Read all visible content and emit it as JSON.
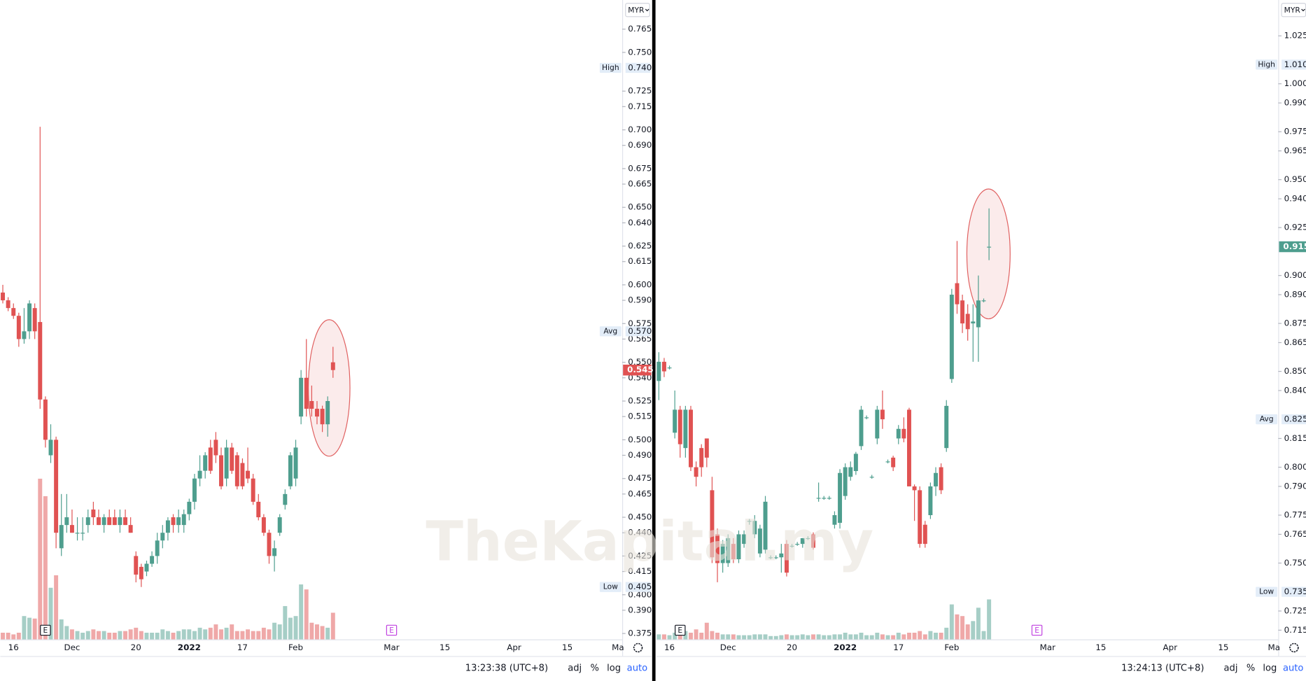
{
  "watermark": "TheKapital.my",
  "chart_data": [
    {
      "type": "candlestick",
      "currency": "MYR",
      "xlim": [
        -0.47,
        116.3
      ],
      "xticks": [
        {
          "value": 2,
          "label": "16"
        },
        {
          "value": 13,
          "label": "Dec"
        },
        {
          "value": 25,
          "label": "20"
        },
        {
          "value": 35,
          "label": "2022",
          "bold": true
        },
        {
          "value": 45,
          "label": "17"
        },
        {
          "value": 55,
          "label": "Feb"
        },
        {
          "value": 73,
          "label": "Mar"
        },
        {
          "value": 83,
          "label": "15"
        },
        {
          "value": 96,
          "label": "Apr"
        },
        {
          "value": 106,
          "label": "15"
        },
        {
          "value": 115.5,
          "label": "Ma"
        }
      ],
      "ylim": [
        0.3712,
        0.7838
      ],
      "yticks": [
        {
          "value": 0.765,
          "label": "0.765"
        },
        {
          "value": 0.75,
          "label": "0.750"
        },
        {
          "value": 0.725,
          "label": "0.725"
        },
        {
          "value": 0.715,
          "label": "0.715"
        },
        {
          "value": 0.7,
          "label": "0.700"
        },
        {
          "value": 0.69,
          "label": "0.690"
        },
        {
          "value": 0.675,
          "label": "0.675"
        },
        {
          "value": 0.665,
          "label": "0.665"
        },
        {
          "value": 0.65,
          "label": "0.650"
        },
        {
          "value": 0.64,
          "label": "0.640"
        },
        {
          "value": 0.625,
          "label": "0.625"
        },
        {
          "value": 0.615,
          "label": "0.615"
        },
        {
          "value": 0.6,
          "label": "0.600"
        },
        {
          "value": 0.59,
          "label": "0.590"
        },
        {
          "value": 0.575,
          "label": "0.575"
        },
        {
          "value": 0.565,
          "label": "0.565"
        },
        {
          "value": 0.55,
          "label": "0.550"
        },
        {
          "value": 0.54,
          "label": "0.540"
        },
        {
          "value": 0.525,
          "label": "0.525"
        },
        {
          "value": 0.515,
          "label": "0.515"
        },
        {
          "value": 0.5,
          "label": "0.500"
        },
        {
          "value": 0.49,
          "label": "0.490"
        },
        {
          "value": 0.475,
          "label": "0.475"
        },
        {
          "value": 0.465,
          "label": "0.465"
        },
        {
          "value": 0.45,
          "label": "0.450"
        },
        {
          "value": 0.44,
          "label": "0.440"
        },
        {
          "value": 0.425,
          "label": "0.425"
        },
        {
          "value": 0.415,
          "label": "0.415"
        },
        {
          "value": 0.4,
          "label": "0.400"
        },
        {
          "value": 0.39,
          "label": "0.390"
        },
        {
          "value": 0.375,
          "label": "0.375"
        }
      ],
      "up_color": "#4e9e8e",
      "down_color": "#e05252",
      "open": [
        0.595,
        0.59,
        0.585,
        0.58,
        0.565,
        0.57,
        0.585,
        0.576,
        0.526,
        0.49,
        0.5,
        0.43,
        0.445,
        0.445,
        0.44,
        0.44,
        0.445,
        0.455,
        0.45,
        0.445,
        0.45,
        0.45,
        0.445,
        0.45,
        0.445,
        0.425,
        0.418,
        0.415,
        0.42,
        0.425,
        0.435,
        0.44,
        0.45,
        0.445,
        0.445,
        0.452,
        0.46,
        0.475,
        0.48,
        0.495,
        0.5,
        0.49,
        0.475,
        0.495,
        0.49,
        0.485,
        0.48,
        0.475,
        0.46,
        0.45,
        0.44,
        0.425,
        0.44,
        0.458,
        0.47,
        0.475,
        0.515,
        0.54,
        0.525,
        0.52,
        0.52,
        0.51,
        0.55
      ],
      "high": [
        0.6,
        0.592,
        0.588,
        0.582,
        0.585,
        0.59,
        0.588,
        0.702,
        0.528,
        0.51,
        0.502,
        0.465,
        0.465,
        0.455,
        0.45,
        0.45,
        0.455,
        0.46,
        0.455,
        0.452,
        0.455,
        0.455,
        0.455,
        0.455,
        0.45,
        0.428,
        0.42,
        0.422,
        0.428,
        0.44,
        0.445,
        0.45,
        0.452,
        0.455,
        0.455,
        0.462,
        0.478,
        0.49,
        0.492,
        0.5,
        0.505,
        0.495,
        0.5,
        0.498,
        0.492,
        0.488,
        0.495,
        0.478,
        0.465,
        0.452,
        0.442,
        0.435,
        0.452,
        0.468,
        0.492,
        0.5,
        0.545,
        0.565,
        0.535,
        0.525,
        0.522,
        0.528,
        0.56
      ],
      "low": [
        0.588,
        0.583,
        0.578,
        0.56,
        0.562,
        0.565,
        0.565,
        0.52,
        0.495,
        0.485,
        0.43,
        0.425,
        0.44,
        0.44,
        0.435,
        0.435,
        0.44,
        0.445,
        0.445,
        0.44,
        0.445,
        0.445,
        0.44,
        0.445,
        0.44,
        0.408,
        0.405,
        0.412,
        0.418,
        0.42,
        0.43,
        0.435,
        0.44,
        0.44,
        0.44,
        0.448,
        0.455,
        0.47,
        0.475,
        0.478,
        0.485,
        0.468,
        0.47,
        0.478,
        0.468,
        0.468,
        0.472,
        0.458,
        0.448,
        0.438,
        0.42,
        0.415,
        0.438,
        0.455,
        0.468,
        0.47,
        0.51,
        0.515,
        0.515,
        0.51,
        0.505,
        0.502,
        0.54
      ],
      "close": [
        0.59,
        0.585,
        0.58,
        0.565,
        0.57,
        0.588,
        0.57,
        0.526,
        0.5,
        0.5,
        0.44,
        0.445,
        0.45,
        0.44,
        0.44,
        0.44,
        0.45,
        0.45,
        0.445,
        0.45,
        0.445,
        0.445,
        0.45,
        0.445,
        0.44,
        0.413,
        0.41,
        0.42,
        0.425,
        0.435,
        0.44,
        0.448,
        0.445,
        0.45,
        0.452,
        0.46,
        0.475,
        0.48,
        0.49,
        0.48,
        0.49,
        0.47,
        0.495,
        0.48,
        0.47,
        0.47,
        0.475,
        0.46,
        0.45,
        0.44,
        0.425,
        0.43,
        0.45,
        0.465,
        0.49,
        0.495,
        0.54,
        0.52,
        0.52,
        0.515,
        0.51,
        0.525,
        0.545
      ],
      "volume": [
        8,
        8,
        6,
        8,
        28,
        26,
        25,
        193,
        172,
        62,
        77,
        24,
        16,
        12,
        10,
        8,
        10,
        12,
        10,
        10,
        8,
        8,
        10,
        10,
        12,
        14,
        10,
        8,
        8,
        8,
        12,
        10,
        8,
        10,
        12,
        12,
        10,
        14,
        12,
        14,
        18,
        12,
        14,
        18,
        10,
        10,
        12,
        10,
        10,
        14,
        12,
        20,
        18,
        40,
        26,
        28,
        66,
        60,
        20,
        18,
        16,
        14,
        32
      ],
      "markers": [
        {
          "name": "High",
          "value": 0.74,
          "label": "0.740"
        },
        {
          "name": "Avg",
          "value": 0.57,
          "label": "0.570"
        },
        {
          "name": "Low",
          "value": 0.405,
          "label": "0.405"
        }
      ],
      "last": {
        "value": 0.545,
        "label": "0.545",
        "color": "#e05252"
      },
      "events": [
        {
          "label": "E",
          "x": 8,
          "color": "#131722"
        },
        {
          "label": "E",
          "x": 73,
          "color": "#c040e0"
        }
      ],
      "footer": {
        "time": "13:23:38 (UTC+8)",
        "buttons": [
          "adj",
          "%",
          "log",
          "auto"
        ]
      }
    },
    {
      "type": "candlestick",
      "currency": "MYR",
      "xlim": [
        -0.47,
        116.3
      ],
      "xticks": [
        {
          "value": 2,
          "label": "16"
        },
        {
          "value": 13,
          "label": "Dec"
        },
        {
          "value": 25,
          "label": "20"
        },
        {
          "value": 35,
          "label": "2022",
          "bold": true
        },
        {
          "value": 45,
          "label": "17"
        },
        {
          "value": 55,
          "label": "Feb"
        },
        {
          "value": 73,
          "label": "Mar"
        },
        {
          "value": 83,
          "label": "15"
        },
        {
          "value": 96,
          "label": "Apr"
        },
        {
          "value": 106,
          "label": "15"
        },
        {
          "value": 115.5,
          "label": "Ma"
        }
      ],
      "ylim": [
        0.7102,
        1.0437
      ],
      "yticks": [
        {
          "value": 1.025,
          "label": "1.025"
        },
        {
          "value": 1,
          "label": "1.000"
        },
        {
          "value": 0.99,
          "label": "0.990"
        },
        {
          "value": 0.975,
          "label": "0.975"
        },
        {
          "value": 0.965,
          "label": "0.965"
        },
        {
          "value": 0.95,
          "label": "0.950"
        },
        {
          "value": 0.94,
          "label": "0.940"
        },
        {
          "value": 0.925,
          "label": "0.925"
        },
        {
          "value": 0.9,
          "label": "0.900"
        },
        {
          "value": 0.89,
          "label": "0.890"
        },
        {
          "value": 0.875,
          "label": "0.875"
        },
        {
          "value": 0.865,
          "label": "0.865"
        },
        {
          "value": 0.85,
          "label": "0.850"
        },
        {
          "value": 0.84,
          "label": "0.840"
        },
        {
          "value": 0.815,
          "label": "0.815"
        },
        {
          "value": 0.8,
          "label": "0.800"
        },
        {
          "value": 0.79,
          "label": "0.790"
        },
        {
          "value": 0.775,
          "label": "0.775"
        },
        {
          "value": 0.765,
          "label": "0.765"
        },
        {
          "value": 0.75,
          "label": "0.750"
        },
        {
          "value": 0.725,
          "label": "0.725"
        },
        {
          "value": 0.715,
          "label": "0.715"
        }
      ],
      "up_color": "#4e9e8e",
      "down_color": "#e05252",
      "open": [
        0.845,
        0.855,
        0.852,
        0.818,
        0.83,
        0.81,
        0.83,
        0.8,
        0.81,
        0.815,
        0.788,
        0.765,
        0.75,
        0.75,
        0.76,
        0.752,
        0.76,
        0.772,
        0.765,
        0.755,
        0.757,
        0.753,
        0.753,
        0.753,
        0.76,
        0.759,
        0.76,
        0.76,
        0.763,
        0.765,
        0.784,
        0.784,
        0.784,
        0.77,
        0.771,
        0.785,
        0.795,
        0.798,
        0.811,
        0.826,
        0.795,
        0.815,
        0.83,
        0.803,
        0.805,
        0.815,
        0.82,
        0.83,
        0.79,
        0.788,
        0.77,
        0.775,
        0.79,
        0.8,
        0.81,
        0.846,
        0.896,
        0.887,
        0.88,
        0.875,
        0.873,
        0.887,
        0.915
      ],
      "high": [
        0.86,
        0.857,
        0.853,
        0.84,
        0.832,
        0.832,
        0.832,
        0.803,
        0.812,
        0.815,
        0.795,
        0.768,
        0.762,
        0.765,
        0.763,
        0.767,
        0.767,
        0.773,
        0.775,
        0.77,
        0.785,
        0.754,
        0.754,
        0.76,
        0.762,
        0.76,
        0.761,
        0.763,
        0.764,
        0.766,
        0.792,
        0.785,
        0.785,
        0.777,
        0.799,
        0.802,
        0.803,
        0.808,
        0.832,
        0.827,
        0.796,
        0.832,
        0.84,
        0.804,
        0.806,
        0.822,
        0.826,
        0.831,
        0.791,
        0.79,
        0.772,
        0.792,
        0.8,
        0.802,
        0.835,
        0.893,
        0.918,
        0.89,
        0.885,
        0.885,
        0.9,
        0.888,
        0.935
      ],
      "low": [
        0.835,
        0.847,
        0.851,
        0.815,
        0.805,
        0.805,
        0.798,
        0.79,
        0.795,
        0.8,
        0.75,
        0.74,
        0.745,
        0.748,
        0.75,
        0.75,
        0.758,
        0.77,
        0.763,
        0.753,
        0.755,
        0.752,
        0.752,
        0.745,
        0.743,
        0.758,
        0.759,
        0.758,
        0.762,
        0.757,
        0.782,
        0.783,
        0.783,
        0.768,
        0.768,
        0.783,
        0.793,
        0.796,
        0.809,
        0.825,
        0.794,
        0.812,
        0.82,
        0.802,
        0.798,
        0.812,
        0.813,
        0.79,
        0.772,
        0.758,
        0.758,
        0.773,
        0.785,
        0.786,
        0.808,
        0.844,
        0.88,
        0.87,
        0.866,
        0.855,
        0.855,
        0.886,
        0.908
      ],
      "close": [
        0.855,
        0.85,
        0.852,
        0.83,
        0.812,
        0.83,
        0.8,
        0.795,
        0.8,
        0.805,
        0.753,
        0.75,
        0.76,
        0.763,
        0.752,
        0.765,
        0.765,
        0.772,
        0.772,
        0.768,
        0.782,
        0.753,
        0.753,
        0.755,
        0.745,
        0.759,
        0.76,
        0.763,
        0.763,
        0.758,
        0.784,
        0.784,
        0.784,
        0.775,
        0.797,
        0.8,
        0.8,
        0.807,
        0.83,
        0.826,
        0.795,
        0.83,
        0.825,
        0.803,
        0.8,
        0.82,
        0.815,
        0.79,
        0.788,
        0.76,
        0.76,
        0.79,
        0.797,
        0.788,
        0.832,
        0.89,
        0.885,
        0.875,
        0.872,
        0.876,
        0.887,
        0.887,
        0.915
      ],
      "volume": [
        6,
        6,
        5,
        8,
        8,
        10,
        8,
        12,
        8,
        20,
        10,
        8,
        6,
        6,
        6,
        5,
        5,
        5,
        6,
        6,
        6,
        4,
        4,
        5,
        6,
        5,
        5,
        6,
        5,
        6,
        6,
        5,
        5,
        6,
        6,
        8,
        6,
        6,
        8,
        5,
        5,
        8,
        6,
        5,
        5,
        8,
        6,
        8,
        8,
        10,
        6,
        10,
        8,
        8,
        14,
        42,
        30,
        28,
        18,
        22,
        38,
        10,
        48
      ],
      "markers": [
        {
          "name": "High",
          "value": 1.01,
          "label": "1.010"
        },
        {
          "name": "Avg",
          "value": 0.825,
          "label": "0.825"
        },
        {
          "name": "Low",
          "value": 0.735,
          "label": "0.735"
        }
      ],
      "last": {
        "value": 0.915,
        "label": "0.915",
        "color": "#4e9e8e"
      },
      "events": [
        {
          "label": "E",
          "x": 4,
          "color": "#131722"
        },
        {
          "label": "E",
          "x": 71,
          "color": "#c040e0"
        }
      ],
      "footer": {
        "time": "13:24:13 (UTC+8)",
        "buttons": [
          "adj",
          "%",
          "log",
          "auto"
        ]
      }
    }
  ]
}
